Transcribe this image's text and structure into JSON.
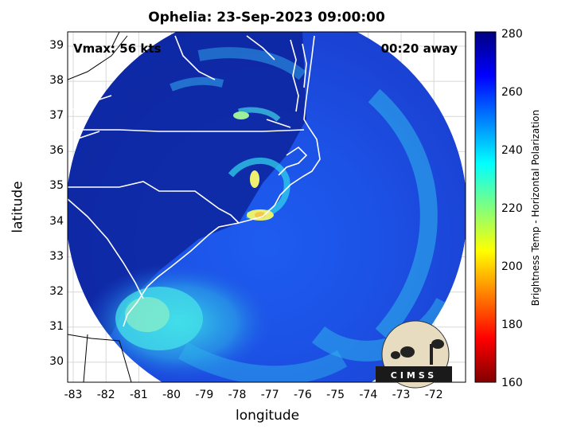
{
  "title": "Ophelia: 23-Sep-2023 09:00:00",
  "vmax_label": "Vmax: 56 kts",
  "time_label": "00:20 away",
  "xlabel": "longitude",
  "ylabel": "latitude",
  "colorbar_label": "Brightness Temp - Horizontal Polarization",
  "x_ticks": [
    "-83",
    "-82",
    "-81",
    "-80",
    "-79",
    "-78",
    "-77",
    "-76",
    "-75",
    "-74",
    "-73",
    "-72"
  ],
  "y_ticks": [
    "39",
    "38",
    "37",
    "36",
    "35",
    "34",
    "33",
    "32",
    "31",
    "30"
  ],
  "colorbar_ticks": [
    "280",
    "260",
    "240",
    "220",
    "200",
    "180",
    "160"
  ],
  "logo_text": "CIMSS",
  "colors": {
    "deep_blue": "#0a1f8f",
    "mid_blue": "#1646d8",
    "cyan": "#2ec8e8",
    "coast": "#ffffff"
  }
}
